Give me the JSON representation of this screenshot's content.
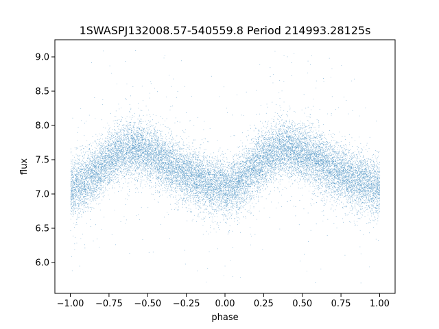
{
  "chart_data": {
    "type": "scatter",
    "title": "1SWASPJ132008.57-540559.8 Period 214993.28125s",
    "xlabel": "phase",
    "ylabel": "flux",
    "xlim": [
      -1.1,
      1.1
    ],
    "ylim": [
      5.55,
      9.25
    ],
    "xticks": [
      -1.0,
      -0.75,
      -0.5,
      -0.25,
      0.0,
      0.25,
      0.5,
      0.75,
      1.0
    ],
    "xtick_labels": [
      "−1.00",
      "−0.75",
      "−0.50",
      "−0.25",
      "0.00",
      "0.25",
      "0.50",
      "0.75",
      "1.00"
    ],
    "yticks": [
      6.0,
      6.5,
      7.0,
      7.5,
      8.0,
      8.5,
      9.0
    ],
    "ytick_labels": [
      "6.0",
      "6.5",
      "7.0",
      "7.5",
      "8.0",
      "8.5",
      "9.0"
    ],
    "marker_color": "#1f77b4",
    "grid": false,
    "legend": "none",
    "series_profile": {
      "phase": [
        0.0,
        0.1,
        0.2,
        0.3,
        0.4,
        0.5,
        0.6,
        0.7,
        0.8,
        0.9,
        1.0
      ],
      "flux_center": [
        7.05,
        7.2,
        7.4,
        7.6,
        7.68,
        7.6,
        7.48,
        7.35,
        7.25,
        7.15,
        7.1
      ],
      "flux_spread_sd": [
        0.2,
        0.2,
        0.2,
        0.2,
        0.2,
        0.2,
        0.2,
        0.2,
        0.2,
        0.2,
        0.2
      ],
      "flux_min": 5.7,
      "flux_max": 9.1,
      "approx_points": 20000
    }
  }
}
